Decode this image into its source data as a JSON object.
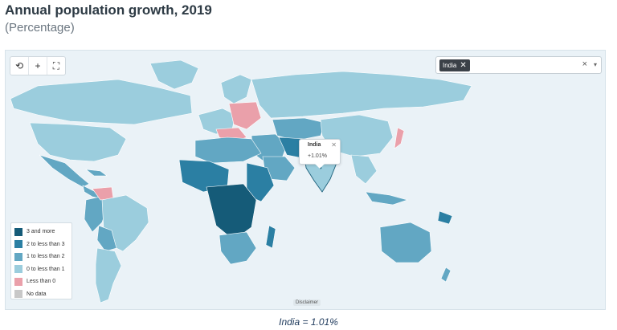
{
  "header": {
    "title": "Annual population growth, 2019",
    "subtitle": "(Percentage)"
  },
  "toolbar": {
    "tools": [
      {
        "name": "reset-view-icon",
        "glyph": "⟲"
      },
      {
        "name": "zoom-in-icon",
        "glyph": "+"
      },
      {
        "name": "fullscreen-icon",
        "glyph": "⛶"
      }
    ]
  },
  "country_select": {
    "selected": "India",
    "clear_glyph": "×",
    "arrow_glyph": "▾"
  },
  "tooltip": {
    "country": "India",
    "value": "+1.01%",
    "close_glyph": "✕"
  },
  "legend": {
    "items": [
      {
        "label": "3 and more",
        "color": "#155b78"
      },
      {
        "label": "2 to less than 3",
        "color": "#2b7fa3"
      },
      {
        "label": "1 to less than 2",
        "color": "#62a7c3"
      },
      {
        "label": "0 to less than 1",
        "color": "#9bcddd"
      },
      {
        "label": "Less than 0",
        "color": "#eaa0aa"
      },
      {
        "label": "No data",
        "color": "#c8c8c8"
      }
    ]
  },
  "map": {
    "disclaimer": "Disclaimer",
    "ocean_color": "#eaf2f7"
  },
  "caption": "India = 1.01%"
}
